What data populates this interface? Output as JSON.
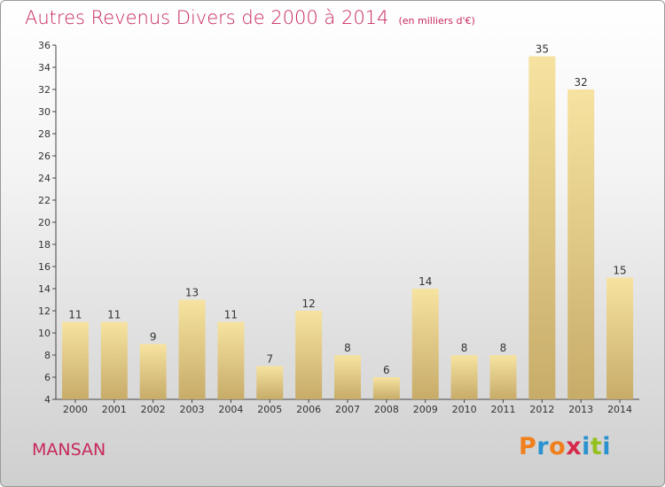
{
  "title": "Autres Revenus Divers de 2000 à 2014",
  "unit": "(en milliers d'€)",
  "commune": "MANSAN",
  "logo": {
    "text": "Proxiti",
    "letters": [
      {
        "char": "P",
        "color": "#f07f1c"
      },
      {
        "char": "r",
        "color": "#2a93cf"
      },
      {
        "char": "o",
        "color": "#f07f1c"
      },
      {
        "char": "x",
        "color": "#d62a4c"
      },
      {
        "char": "i",
        "color": "#2a93cf"
      },
      {
        "char": "t",
        "color": "#94c11f"
      },
      {
        "char": "i",
        "color": "#2a93cf"
      }
    ]
  },
  "colors": {
    "title": "#c8285a",
    "bar_light": "#f7e3a1",
    "bar_dark": "#c7ab69",
    "axis": "#444444"
  },
  "chart_data": {
    "type": "bar",
    "title": "Autres Revenus Divers de 2000 à 2014",
    "xlabel": "",
    "ylabel": "",
    "categories": [
      "2000",
      "2001",
      "2002",
      "2003",
      "2004",
      "2005",
      "2006",
      "2007",
      "2008",
      "2009",
      "2010",
      "2011",
      "2012",
      "2013",
      "2014"
    ],
    "values": [
      11,
      11,
      9,
      13,
      11,
      7,
      12,
      8,
      6,
      14,
      8,
      8,
      35,
      32,
      15
    ],
    "ylim": [
      4,
      36
    ],
    "yticks": [
      4,
      6,
      8,
      10,
      12,
      14,
      16,
      18,
      20,
      22,
      24,
      26,
      28,
      30,
      32,
      34,
      36
    ],
    "grid": false,
    "legend": "none"
  }
}
